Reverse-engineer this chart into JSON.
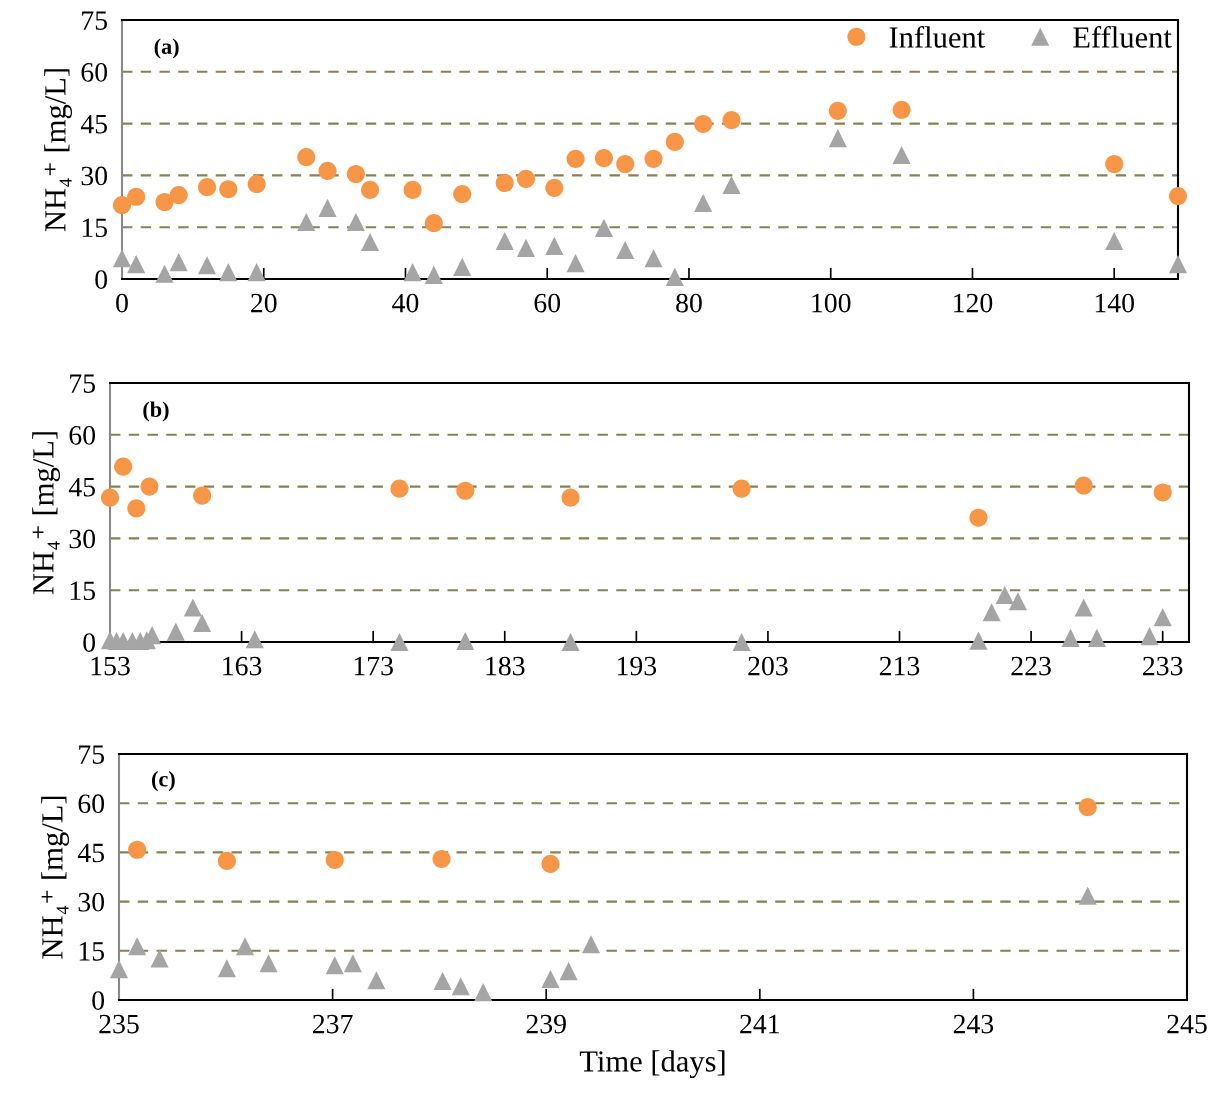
{
  "chart_data": [
    {
      "type": "scatter",
      "annotations": [
        "(a)"
      ],
      "ylabel": "NH₄⁺ [mg/L]",
      "xlim": [
        0,
        149
      ],
      "xticks": [
        0,
        20,
        40,
        60,
        80,
        100,
        120,
        140
      ],
      "ylim": [
        0,
        75
      ],
      "yticks": [
        0,
        15,
        30,
        45,
        60,
        75
      ],
      "grid": "y",
      "legend": "top right",
      "series": [
        {
          "name": "Influent",
          "color": "#f79646",
          "marker": "circle",
          "x": [
            0,
            2,
            6,
            8,
            12,
            15,
            19,
            26,
            29,
            33,
            35,
            41,
            44,
            48,
            54,
            57,
            61,
            64,
            68,
            71,
            75,
            78,
            82,
            86,
            101,
            110,
            140,
            149
          ],
          "values": [
            21.4,
            23.8,
            22.3,
            24.3,
            26.6,
            26,
            27.5,
            35.3,
            31.3,
            30.4,
            25.8,
            25.8,
            16.2,
            24.6,
            27.8,
            29,
            26.4,
            34.8,
            35,
            33.3,
            34.8,
            39.7,
            44.9,
            46,
            48.7,
            49,
            33.3,
            24
          ]
        },
        {
          "name": "Effluent",
          "color": "#a5a5a5",
          "marker": "triangle",
          "x": [
            0,
            2,
            6,
            8,
            12,
            15,
            19,
            26,
            29,
            33,
            35,
            41,
            44,
            48,
            54,
            57,
            61,
            64,
            68,
            71,
            75,
            78,
            82,
            86,
            101,
            110,
            140,
            149
          ],
          "values": [
            6,
            4.3,
            1.5,
            4.9,
            4,
            2,
            2,
            16.5,
            20.6,
            16.5,
            10.7,
            2,
            1.2,
            3.5,
            11,
            9,
            9.6,
            4.6,
            14.8,
            8.4,
            6,
            0.6,
            22,
            27.2,
            40.8,
            35.9,
            11,
            4.3
          ]
        }
      ]
    },
    {
      "type": "scatter",
      "annotations": [
        "(b)"
      ],
      "ylabel": "NH₄⁺ [mg/L]",
      "xlim": [
        153,
        235
      ],
      "xticks": [
        153,
        163,
        173,
        183,
        193,
        203,
        213,
        223,
        233
      ],
      "ylim": [
        0,
        75
      ],
      "yticks": [
        0,
        15,
        30,
        45,
        60,
        75
      ],
      "grid": "y",
      "series": [
        {
          "color": "#f79646",
          "marker": "circle",
          "x": [
            153,
            154,
            155,
            156,
            160,
            175,
            180,
            188,
            201,
            219,
            227,
            233
          ],
          "values": [
            41.8,
            50.8,
            38.7,
            45,
            42.4,
            44.4,
            43.8,
            41.8,
            44.4,
            36,
            45.3,
            43.3
          ]
        },
        {
          "color": "#a5a5a5",
          "marker": "triangle",
          "x": [
            153,
            153.5,
            154,
            154.7,
            155.3,
            155.8,
            156.2,
            158,
            159.3,
            160,
            164,
            175,
            180,
            188,
            201,
            219,
            226,
            227,
            228,
            232,
            233
          ],
          "values": [
            0.5,
            0.3,
            0.3,
            0.3,
            0.3,
            0.5,
            2,
            3,
            10,
            5.5,
            0.8,
            0,
            0.3,
            0,
            0,
            0.4,
            1.2,
            10,
            1.2,
            1.7,
            7.2
          ]
        },
        {
          "color": "#a5a5a5",
          "marker": "triangle",
          "x": [
            220,
            221,
            222
          ],
          "values": [
            8.6,
            13.6,
            11.8
          ]
        }
      ]
    },
    {
      "type": "scatter",
      "annotations": [
        "(c)"
      ],
      "ylabel": "NH₄⁺ [mg/L]",
      "xlabel": "Time [days]",
      "xlim": [
        235,
        245
      ],
      "xticks": [
        235,
        237,
        239,
        241,
        243,
        245
      ],
      "ylim": [
        0,
        75
      ],
      "yticks": [
        0,
        15,
        30,
        45,
        60,
        75
      ],
      "grid": "y",
      "series": [
        {
          "color": "#f79646",
          "marker": "circle",
          "x": [
            235.17,
            236.01,
            237.02,
            238.02,
            239.04,
            244.07
          ],
          "values": [
            45.8,
            42.4,
            42.7,
            43,
            41.5,
            58.8
          ]
        },
        {
          "color": "#a5a5a5",
          "marker": "triangle",
          "x": [
            235.0,
            235.17,
            235.38,
            236.01,
            236.18,
            236.4,
            237.02,
            237.19,
            237.41,
            238.03,
            238.2,
            238.41,
            239.04,
            239.21,
            239.42,
            244.07
          ],
          "values": [
            9.4,
            16.4,
            12.7,
            9.7,
            16.4,
            11.2,
            10.6,
            11.2,
            6,
            5.8,
            4.2,
            2.4,
            6.4,
            8.8,
            17,
            31.8
          ]
        }
      ]
    }
  ]
}
